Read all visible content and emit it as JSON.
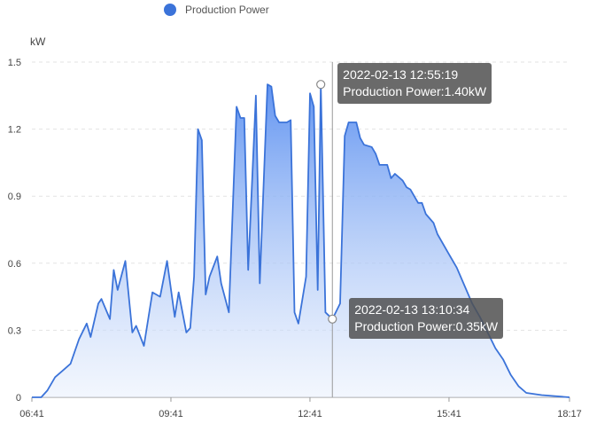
{
  "legend": {
    "label": "Production Power",
    "color": "#3b73d9"
  },
  "chart_data": {
    "type": "area",
    "title": "",
    "ylabel": "kW",
    "ylim": [
      0,
      1.5
    ],
    "yticks": [
      "0",
      "0.3",
      "0.6",
      "0.9",
      "1.2",
      "1.5"
    ],
    "xlim": [
      "06:41",
      "18:17"
    ],
    "xticks": [
      "06:41",
      "09:41",
      "12:41",
      "15:41",
      "18:17"
    ],
    "grid": true,
    "series": [
      {
        "name": "Production Power",
        "color": "#3b73d9",
        "points": [
          [
            "06:41",
            0
          ],
          [
            "06:53",
            0
          ],
          [
            "07:01",
            0.03
          ],
          [
            "07:11",
            0.09
          ],
          [
            "07:21",
            0.12
          ],
          [
            "07:31",
            0.15
          ],
          [
            "07:42",
            0.26
          ],
          [
            "07:52",
            0.33
          ],
          [
            "07:57",
            0.27
          ],
          [
            "08:07",
            0.42
          ],
          [
            "08:11",
            0.44
          ],
          [
            "08:22",
            0.35
          ],
          [
            "08:27",
            0.57
          ],
          [
            "08:32",
            0.48
          ],
          [
            "08:42",
            0.61
          ],
          [
            "08:51",
            0.29
          ],
          [
            "08:56",
            0.32
          ],
          [
            "09:06",
            0.23
          ],
          [
            "09:17",
            0.47
          ],
          [
            "09:27",
            0.45
          ],
          [
            "09:36",
            0.61
          ],
          [
            "09:46",
            0.36
          ],
          [
            "09:51",
            0.47
          ],
          [
            "10:01",
            0.29
          ],
          [
            "10:06",
            0.31
          ],
          [
            "10:11",
            0.54
          ],
          [
            "10:16",
            1.2
          ],
          [
            "10:21",
            1.15
          ],
          [
            "10:26",
            0.46
          ],
          [
            "10:31",
            0.54
          ],
          [
            "10:41",
            0.63
          ],
          [
            "10:46",
            0.51
          ],
          [
            "10:56",
            0.38
          ],
          [
            "11:06",
            1.3
          ],
          [
            "11:11",
            1.25
          ],
          [
            "11:16",
            1.25
          ],
          [
            "11:21",
            0.57
          ],
          [
            "11:31",
            1.35
          ],
          [
            "11:36",
            0.51
          ],
          [
            "11:46",
            1.4
          ],
          [
            "11:51",
            1.39
          ],
          [
            "11:56",
            1.26
          ],
          [
            "12:01",
            1.23
          ],
          [
            "12:11",
            1.23
          ],
          [
            "12:16",
            1.24
          ],
          [
            "12:21",
            0.38
          ],
          [
            "12:26",
            0.33
          ],
          [
            "12:36",
            0.54
          ],
          [
            "12:41",
            1.36
          ],
          [
            "12:46",
            1.3
          ],
          [
            "12:51",
            0.48
          ],
          [
            "12:55",
            1.4
          ],
          [
            "13:01",
            0.38
          ],
          [
            "13:10",
            0.35
          ],
          [
            "13:20",
            0.42
          ],
          [
            "13:26",
            1.17
          ],
          [
            "13:31",
            1.23
          ],
          [
            "13:41",
            1.23
          ],
          [
            "13:46",
            1.16
          ],
          [
            "13:51",
            1.13
          ],
          [
            "14:01",
            1.12
          ],
          [
            "14:06",
            1.09
          ],
          [
            "14:11",
            1.04
          ],
          [
            "14:21",
            1.04
          ],
          [
            "14:26",
            0.98
          ],
          [
            "14:31",
            1.0
          ],
          [
            "14:41",
            0.97
          ],
          [
            "14:46",
            0.94
          ],
          [
            "14:51",
            0.93
          ],
          [
            "15:01",
            0.87
          ],
          [
            "15:06",
            0.87
          ],
          [
            "15:11",
            0.82
          ],
          [
            "15:21",
            0.78
          ],
          [
            "15:26",
            0.73
          ],
          [
            "15:41",
            0.64
          ],
          [
            "15:51",
            0.58
          ],
          [
            "16:01",
            0.5
          ],
          [
            "16:11",
            0.42
          ],
          [
            "16:21",
            0.36
          ],
          [
            "16:31",
            0.29
          ],
          [
            "16:41",
            0.22
          ],
          [
            "16:51",
            0.17
          ],
          [
            "17:01",
            0.1
          ],
          [
            "17:11",
            0.05
          ],
          [
            "17:21",
            0.02
          ],
          [
            "17:41",
            0.01
          ],
          [
            "18:17",
            0
          ]
        ]
      }
    ],
    "tooltips": [
      {
        "time": "2022-02-13 12:55:19",
        "x": "12:55",
        "value": 1.4,
        "text": "Production Power:1.40kW"
      },
      {
        "time": "2022-02-13 13:10:34",
        "x": "13:10",
        "value": 0.35,
        "text": "Production Power:0.35kW"
      }
    ]
  }
}
